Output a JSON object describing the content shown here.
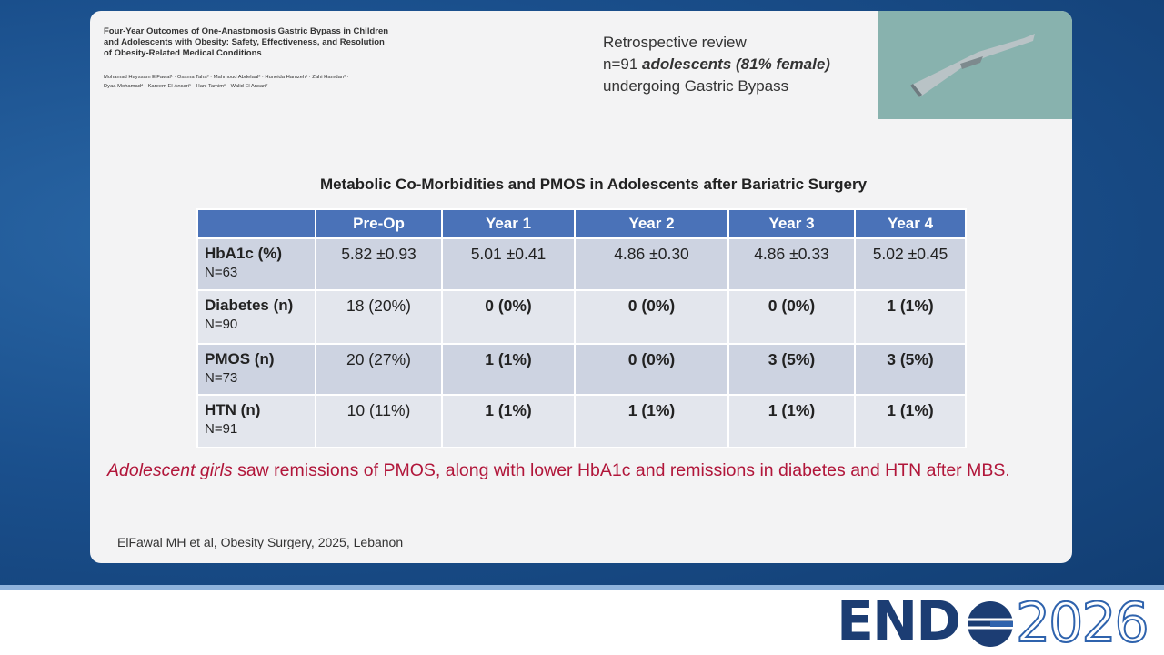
{
  "paper": {
    "title_lines": [
      "Four-Year Outcomes of One-Anastomosis Gastric Bypass in Children",
      "and Adolescents with Obesity: Safety, Effectiveness, and Resolution",
      "of Obesity-Related Medical Conditions"
    ],
    "author_lines": [
      "Mohamad Hayssam ElFawal¹ · Osama Taha² · Mahmoud Abdelaal² · Huneida Hamzeh¹ · Zahi Hamdan³ ·",
      "Dyaa Mohamad⁴ · Kareem El-Ansari⁵ · Hani Tamim⁶ · Walid El Ansari⁷"
    ]
  },
  "study": {
    "line1": "Retrospective review",
    "n": "n=91",
    "group": "adolescents (81% female)",
    "line3": "undergoing Gastric Bypass"
  },
  "table": {
    "title": "Metabolic Co-Morbidities and PMOS in Adolescents after Bariatric Surgery",
    "columns": [
      "Pre-Op",
      "Year 1",
      "Year 2",
      "Year 3",
      "Year 4"
    ],
    "rows": [
      {
        "label": "HbA1c (%)",
        "n": "N=63",
        "cells": [
          "5.82 ±0.93",
          "5.01 ±0.41",
          "4.86 ±0.30",
          "4.86 ±0.33",
          "5.02 ±0.45"
        ]
      },
      {
        "label": "Diabetes (n)",
        "n": "N=90",
        "cells": [
          "18 (20%)",
          "0 (0%)",
          "0 (0%)",
          "0 (0%)",
          "1 (1%)"
        ]
      },
      {
        "label": "PMOS (n)",
        "n": "N=73",
        "cells": [
          "20 (27%)",
          "1 (1%)",
          "0 (0%)",
          "3 (5%)",
          "3 (5%)"
        ]
      },
      {
        "label": "HTN (n)",
        "n": "N=91",
        "cells": [
          "10 (11%)",
          "1 (1%)",
          "1 (1%)",
          "1 (1%)",
          "1 (1%)"
        ]
      }
    ]
  },
  "conclusion": {
    "emphasis": "Adolescent girls",
    "text": "saw remissions of PMOS, along with lower HbA1c and remissions in diabetes and HTN after MBS."
  },
  "citation": "ElFawal MH et al, Obesity Surgery, 2025, Lebanon",
  "logo": {
    "brand": "END",
    "year": "2026"
  }
}
